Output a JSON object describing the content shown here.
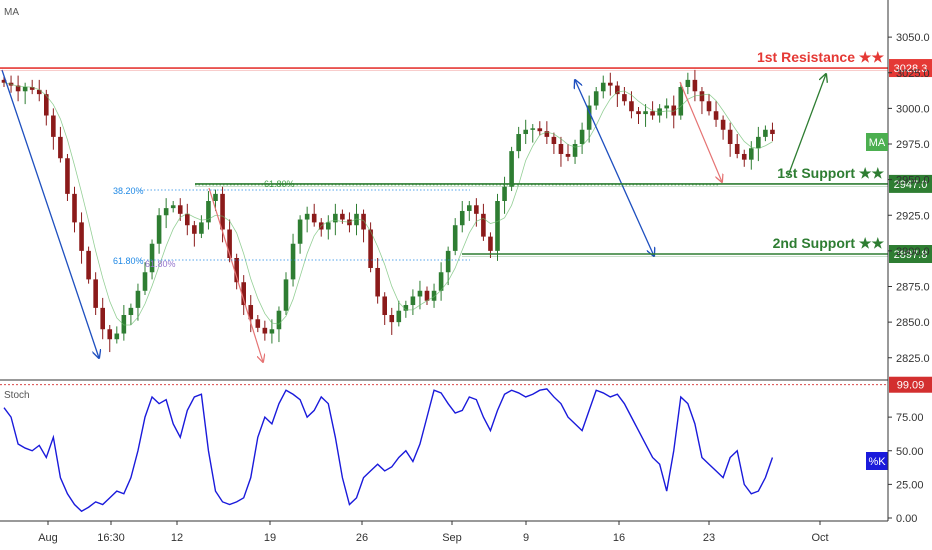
{
  "chart_data": [
    {
      "type": "candlestick",
      "indicator_label": "MA",
      "ma_badge": "MA",
      "y_ticks": [
        "3050.0",
        "3025.0",
        "3000.0",
        "2975.0",
        "2950.0",
        "2925.0",
        "2900.0",
        "2875.0",
        "2850.0",
        "2825.0"
      ],
      "ylim": [
        2815,
        3062
      ],
      "x_ticks": [
        "Aug",
        "16:30",
        "12",
        "19",
        "26",
        "Sep",
        "9",
        "16",
        "23",
        "Oct"
      ],
      "levels": [
        {
          "name": "1st Resistance ★★",
          "value": 3028.3,
          "tag": "3028.3",
          "color": "#e53935"
        },
        {
          "name": "1st Support ★★",
          "value": 2947.0,
          "tag": "2947.0",
          "color": "#2e7d32"
        },
        {
          "name": "2nd Support ★★",
          "value": 2897.8,
          "tag": "2897.8",
          "color": "#2e7d32"
        }
      ],
      "fib_labels": [
        {
          "text": "38.20%",
          "color": "#1e88e5"
        },
        {
          "text": "61.80%",
          "color": "#1e88e5"
        },
        {
          "text": "61.80%",
          "color": "#43a047"
        },
        {
          "text": "61.80%",
          "color": "#9575cd"
        }
      ],
      "close_series": [
        3018,
        3016,
        3012,
        3015,
        3013,
        3010,
        2995,
        2980,
        2965,
        2940,
        2920,
        2900,
        2880,
        2860,
        2845,
        2838,
        2842,
        2855,
        2860,
        2872,
        2885,
        2905,
        2925,
        2930,
        2932,
        2926,
        2918,
        2912,
        2920,
        2935,
        2940,
        2915,
        2895,
        2878,
        2862,
        2852,
        2846,
        2842,
        2845,
        2858,
        2880,
        2905,
        2922,
        2926,
        2920,
        2915,
        2920,
        2926,
        2922,
        2918,
        2926,
        2915,
        2888,
        2868,
        2855,
        2850,
        2858,
        2862,
        2868,
        2872,
        2865,
        2872,
        2885,
        2900,
        2918,
        2928,
        2932,
        2926,
        2910,
        2900,
        2935,
        2945,
        2970,
        2982,
        2985,
        2986,
        2984,
        2980,
        2975,
        2968,
        2966,
        2975,
        2985,
        3002,
        3012,
        3018,
        3016,
        3010,
        3005,
        2998,
        2996,
        2998,
        2995,
        3000,
        3002,
        2995,
        3015,
        3020,
        3012,
        3005,
        2998,
        2992,
        2985,
        2975,
        2968,
        2964,
        2972,
        2980,
        2985,
        2982
      ]
    },
    {
      "type": "line",
      "indicator_label": "Stoch",
      "series_tag": "%K",
      "y_ticks": [
        "75.00",
        "50.00",
        "25.00",
        "0.00"
      ],
      "top_level_tag": "99.09",
      "ylim": [
        0,
        100
      ],
      "k_series": [
        82,
        75,
        55,
        52,
        50,
        54,
        45,
        60,
        30,
        18,
        10,
        5,
        8,
        12,
        10,
        15,
        20,
        18,
        30,
        50,
        75,
        90,
        85,
        88,
        70,
        60,
        80,
        90,
        92,
        50,
        20,
        12,
        10,
        12,
        15,
        30,
        60,
        75,
        70,
        85,
        95,
        92,
        88,
        75,
        80,
        90,
        85,
        60,
        30,
        10,
        15,
        30,
        35,
        40,
        35,
        38,
        45,
        50,
        42,
        55,
        75,
        95,
        93,
        85,
        78,
        80,
        90,
        88,
        75,
        65,
        80,
        92,
        95,
        93,
        90,
        92,
        95,
        96,
        90,
        85,
        75,
        70,
        65,
        80,
        95,
        93,
        90,
        92,
        85,
        75,
        65,
        55,
        45,
        40,
        20,
        50,
        90,
        85,
        70,
        45,
        40,
        35,
        30,
        45,
        50,
        25,
        18,
        20,
        30,
        45
      ]
    }
  ]
}
